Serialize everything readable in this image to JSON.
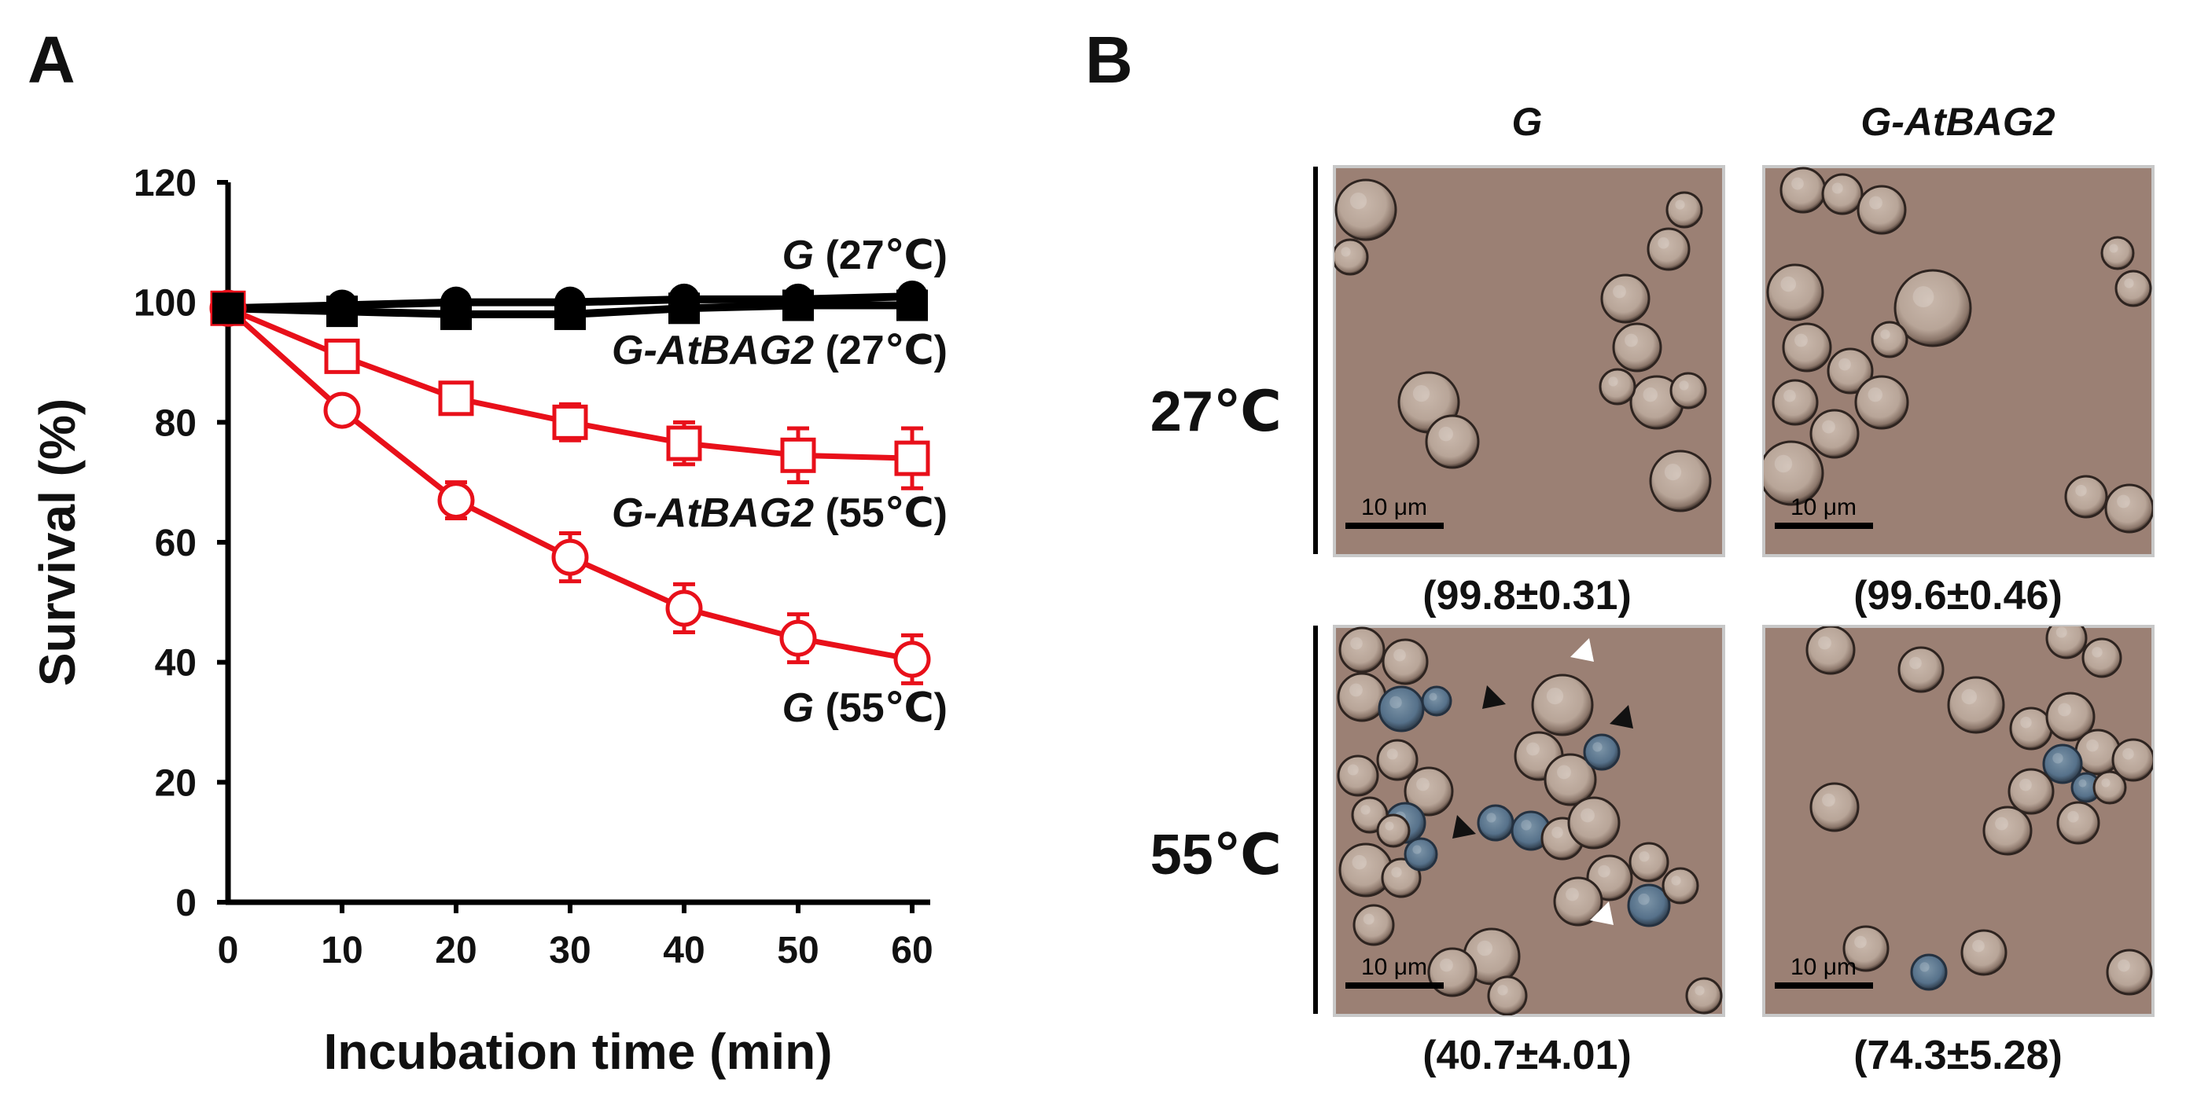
{
  "panels": {
    "a_label": "A",
    "b_label": "B"
  },
  "chart_data": {
    "type": "line",
    "xlabel": "Incubation time (min)",
    "ylabel": "Survival (%)",
    "x": [
      0,
      10,
      20,
      30,
      40,
      50,
      60
    ],
    "xlim": [
      0,
      60
    ],
    "ylim": [
      0,
      120
    ],
    "x_ticks": [
      "0",
      "10",
      "20",
      "30",
      "40",
      "50",
      "60"
    ],
    "y_ticks": [
      "0",
      "20",
      "40",
      "60",
      "80",
      "100",
      "120"
    ],
    "grid": false,
    "series": [
      {
        "name_italic": "G",
        "name_rest": " (27℃)",
        "color": "#000000",
        "marker": "filled-circle",
        "values": [
          99,
          99.5,
          100,
          100,
          100.5,
          100.5,
          101
        ],
        "errors": [
          0.5,
          0.5,
          0.5,
          0.5,
          0.5,
          0.5,
          0.5
        ]
      },
      {
        "name_italic": "G-AtBAG2",
        "name_rest": " (27℃)",
        "color": "#000000",
        "marker": "filled-square",
        "values": [
          99,
          98.5,
          98,
          98,
          99,
          99.5,
          99.5
        ],
        "errors": [
          0.5,
          0.5,
          0.5,
          0.5,
          0.5,
          0.5,
          0.5
        ]
      },
      {
        "name_italic": "G-AtBAG2",
        "name_rest": " (55℃)",
        "color": "#e8101a",
        "marker": "open-square",
        "values": [
          99,
          91,
          84,
          80,
          76.5,
          74.5,
          74
        ],
        "errors": [
          0.5,
          1.5,
          2,
          3,
          3.5,
          4.5,
          5
        ]
      },
      {
        "name_italic": "G",
        "name_rest": " (55℃)",
        "color": "#e8101a",
        "marker": "open-circle",
        "values": [
          99,
          82,
          67,
          57.5,
          49,
          44,
          40.5
        ],
        "errors": [
          0.5,
          1.5,
          3,
          4,
          4,
          4,
          4
        ]
      }
    ]
  },
  "micrographs": {
    "col_headers": [
      "G",
      "G-AtBAG2"
    ],
    "row_labels": [
      "27℃",
      "55℃"
    ],
    "scale_bar_text": "10 μm",
    "values": [
      [
        "(99.8±0.31)",
        "(99.6±0.46)"
      ],
      [
        "(40.7±4.01)",
        "(74.3±5.28)"
      ]
    ],
    "background_color": "#9b8074",
    "stained_cell_color": "#4f6d86"
  }
}
